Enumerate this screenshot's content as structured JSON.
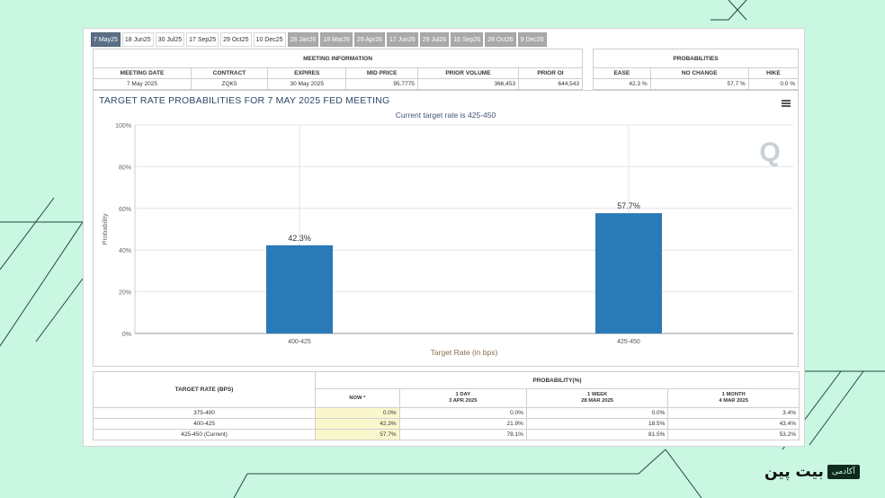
{
  "tabs": [
    "7 May25",
    "18 Jun25",
    "30 Jul25",
    "17 Sep25",
    "29 Oct25",
    "10 Dec25",
    "28 Jan26",
    "18 Mar26",
    "29 Apr26",
    "17 Jun26",
    "29 Jul26",
    "16 Sep26",
    "28 Oct26",
    "9 Dec26"
  ],
  "meeting_info": {
    "header": "MEETING INFORMATION",
    "columns": [
      "MEETING DATE",
      "CONTRACT",
      "EXPIRES",
      "MID PRICE",
      "PRIOR VOLUME",
      "PRIOR OI"
    ],
    "row": [
      "7 May 2025",
      "ZQK5",
      "30 May 2025",
      "95.7775",
      "366,453",
      "644,543"
    ]
  },
  "probabilities": {
    "header": "PROBABILITIES",
    "columns": [
      "EASE",
      "NO CHANGE",
      "HIKE"
    ],
    "row": [
      "42.3 %",
      "57.7 %",
      "0.0 %"
    ]
  },
  "chart_data": {
    "type": "bar",
    "title": "TARGET RATE PROBABILITIES FOR 7 MAY 2025 FED MEETING",
    "subtitle": "Current target rate is 425-450",
    "categories": [
      "400-425",
      "425-450"
    ],
    "values": [
      42.3,
      57.7
    ],
    "data_labels": [
      "42.3%",
      "57.7%"
    ],
    "xlabel": "Target Rate (in bps)",
    "ylabel": "Probability",
    "ylim": [
      0,
      100
    ],
    "yticks": [
      "0%",
      "20%",
      "40%",
      "60%",
      "80%",
      "100%"
    ],
    "grid": true,
    "bar_color": "#2a7ab8",
    "watermark": "Q"
  },
  "prob_table": {
    "header_left": "TARGET RATE (BPS)",
    "header_right": "PROBABILITY(%)",
    "columns": [
      {
        "top": "NOW *",
        "sub": ""
      },
      {
        "top": "1 DAY",
        "sub": "3 APR 2025"
      },
      {
        "top": "1 WEEK",
        "sub": "28 MAR 2025"
      },
      {
        "top": "1 MONTH",
        "sub": "4 MAR 2025"
      }
    ],
    "rows": [
      {
        "rate": "375-400",
        "vals": [
          "0.0%",
          "0.0%",
          "0.0%",
          "3.4%"
        ]
      },
      {
        "rate": "400-425",
        "vals": [
          "42.3%",
          "21.9%",
          "18.5%",
          "43.4%"
        ]
      },
      {
        "rate": "425-450 (Current)",
        "vals": [
          "57.7%",
          "78.1%",
          "81.5%",
          "53.2%"
        ]
      }
    ]
  },
  "brand": {
    "name": "بیت پین",
    "tag": "آکادمی"
  },
  "colors": {
    "background": "#c9f7e1",
    "active_tab": "#5b6f86",
    "now_cell": "#fbf7cd"
  }
}
